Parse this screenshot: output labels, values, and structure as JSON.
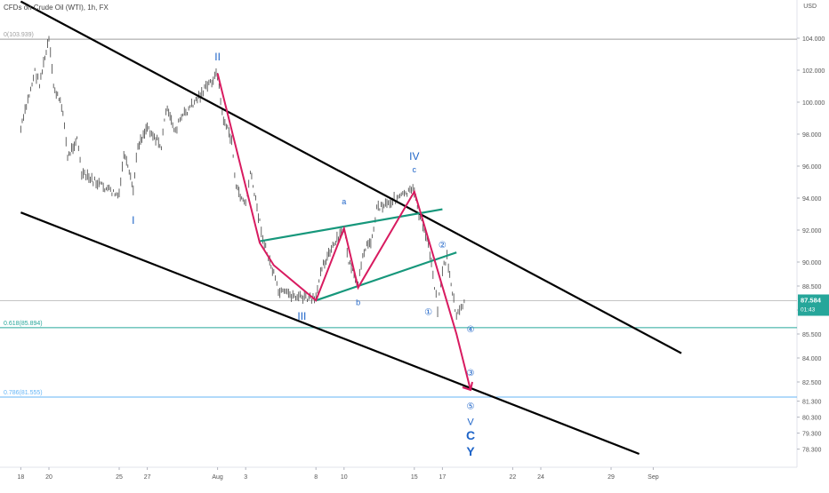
{
  "header": {
    "symbol_title": "CFDs on Crude Oil (WTI), 1h, FX",
    "currency": "USD"
  },
  "chart_data": {
    "type": "candlestick",
    "ylim": [
      77.8,
      106.5
    ],
    "y_ticks": [
      104.0,
      102.0,
      100.0,
      98.0,
      96.0,
      94.0,
      92.0,
      90.0,
      88.5,
      87.0,
      85.5,
      84.0,
      82.5,
      81.3,
      80.3,
      79.3,
      78.3
    ],
    "y_tick_labels": [
      "104.000",
      "102.000",
      "100.000",
      "98.000",
      "96.000",
      "94.000",
      "92.000",
      "90.000",
      "88.500",
      "87.000",
      "85.500",
      "84.000",
      "82.500",
      "81.300",
      "80.300",
      "79.300",
      "78.300"
    ],
    "x_ticks": [
      "18",
      "20",
      "25",
      "27",
      "Aug",
      "3",
      "8",
      "10",
      "15",
      "17",
      "22",
      "24",
      "29",
      "Sep"
    ],
    "last_price": {
      "value": 87.584,
      "label": "87.584",
      "countdown": "01:43",
      "color": "#26a69a"
    },
    "price_path": [
      {
        "t": "Jul 18",
        "v": 98.3
      },
      {
        "t": "Jul 19",
        "v": 101.9
      },
      {
        "t": "Jul 19 b",
        "v": 101.2
      },
      {
        "t": "Jul 20",
        "v": 103.9
      },
      {
        "t": "Jul 20 b",
        "v": 101.0
      },
      {
        "t": "Jul 21",
        "v": 99.5
      },
      {
        "t": "Jul 21 b",
        "v": 96.5
      },
      {
        "t": "Jul 22",
        "v": 97.8
      },
      {
        "t": "Jul 22 b",
        "v": 95.5
      },
      {
        "t": "Jul 25",
        "v": 94.1
      },
      {
        "t": "Jul 25 b",
        "v": 96.8
      },
      {
        "t": "Jul 26",
        "v": 94.5
      },
      {
        "t": "Jul 26 b",
        "v": 97.3
      },
      {
        "t": "Jul 27",
        "v": 98.5
      },
      {
        "t": "Jul 28",
        "v": 97.2
      },
      {
        "t": "Jul 28 b",
        "v": 99.6
      },
      {
        "t": "Jul 29",
        "v": 98.2
      },
      {
        "t": "Jul 29 b",
        "v": 98.9
      },
      {
        "t": "Aug 1",
        "v": 101.8
      },
      {
        "t": "Aug 1 b",
        "v": 99.2
      },
      {
        "t": "Aug 2",
        "v": 97.6
      },
      {
        "t": "Aug 2 b",
        "v": 94.6
      },
      {
        "t": "Aug 3",
        "v": 93.6
      },
      {
        "t": "Aug 3 b",
        "v": 95.6
      },
      {
        "t": "Aug 4",
        "v": 92.5
      },
      {
        "t": "Aug 4 b",
        "v": 91.1
      },
      {
        "t": "Aug 5",
        "v": 89.2
      },
      {
        "t": "Aug 5 b",
        "v": 88.1
      },
      {
        "t": "Aug 8",
        "v": 87.6
      },
      {
        "t": "Aug 8 b",
        "v": 89.6
      },
      {
        "t": "Aug 9",
        "v": 90.6
      },
      {
        "t": "Aug 10",
        "v": 92.1
      },
      {
        "t": "Aug 10 b",
        "v": 90.0
      },
      {
        "t": "Aug 11",
        "v": 88.4
      },
      {
        "t": "Aug 11 b",
        "v": 90.6
      },
      {
        "t": "Aug 12",
        "v": 91.5
      },
      {
        "t": "Aug 12 b",
        "v": 93.4
      },
      {
        "t": "Aug 15",
        "v": 94.5
      },
      {
        "t": "Aug 15 b",
        "v": 93.0
      },
      {
        "t": "Aug 16",
        "v": 91.2
      },
      {
        "t": "Aug 16 b",
        "v": 89.3
      },
      {
        "t": "Aug 16 c",
        "v": 87.1
      },
      {
        "t": "Aug 17",
        "v": 89.5
      },
      {
        "t": "Aug 17 b",
        "v": 90.3
      },
      {
        "t": "Aug 18",
        "v": 86.5
      },
      {
        "t": "Aug 18 b",
        "v": 87.2
      },
      {
        "t": "Aug 18 c",
        "v": 87.58
      }
    ],
    "fib_levels": [
      {
        "value": 103.939,
        "label": "0(103.939)",
        "color": "#9e9e9e"
      },
      {
        "value": 85.894,
        "label": "0.618(85.894)",
        "color": "#26a69a"
      },
      {
        "value": 81.555,
        "label": "0.786(81.555)",
        "color": "#64b5f6"
      }
    ],
    "current_price_line": 87.584,
    "channel_lines": [
      {
        "name": "channel-upper",
        "from": {
          "t": "Jul 18",
          "v": 106.3
        },
        "to": {
          "t": "Sep 3",
          "v": 84.3
        },
        "color": "#000000"
      },
      {
        "name": "channel-lower",
        "from": {
          "t": "Jul 18",
          "v": 93.1
        },
        "to": {
          "t": "Aug 31",
          "v": 78.0
        },
        "color": "#000000"
      }
    ],
    "triangle_lines": [
      {
        "name": "triangle-upper",
        "from": {
          "t": "Aug 4",
          "v": 91.3
        },
        "to": {
          "t": "Aug 17",
          "v": 93.3
        },
        "color": "#16977b"
      },
      {
        "name": "triangle-lower",
        "from": {
          "t": "Aug 8",
          "v": 87.6
        },
        "to": {
          "t": "Aug 18",
          "v": 90.6
        },
        "color": "#16977b"
      }
    ],
    "wave_path": {
      "color": "#d81b60",
      "points": [
        {
          "t": "Aug 1",
          "v": 101.8
        },
        {
          "t": "Aug 4",
          "v": 91.2
        },
        {
          "t": "Aug 5",
          "v": 89.8
        },
        {
          "t": "Aug 8",
          "v": 87.6
        },
        {
          "t": "Aug 10",
          "v": 92.1
        },
        {
          "t": "Aug 11",
          "v": 88.4
        },
        {
          "t": "Aug 15",
          "v": 94.4
        },
        {
          "t": "Aug 18",
          "v": 85.5
        },
        {
          "t": "Aug 19",
          "v": 82.0
        }
      ]
    },
    "wave_labels": [
      {
        "text": "II",
        "t": "Aug 1",
        "v": 102.6,
        "color": "#1e64c8",
        "size": 12
      },
      {
        "text": "I",
        "t": "Jul 26",
        "v": 92.4,
        "color": "#1e64c8",
        "size": 12
      },
      {
        "text": "III",
        "t": "Aug 7",
        "v": 86.4,
        "color": "#1e64c8",
        "size": 12
      },
      {
        "text": "IV",
        "t": "Aug 15",
        "v": 96.4,
        "color": "#1e64c8",
        "size": 12
      },
      {
        "text": "a",
        "t": "Aug 10",
        "v": 93.6,
        "color": "#1e64c8",
        "size": 9
      },
      {
        "text": "b",
        "t": "Aug 11",
        "v": 87.3,
        "color": "#1e64c8",
        "size": 9
      },
      {
        "text": "c",
        "t": "Aug 15",
        "v": 95.6,
        "color": "#1e64c8",
        "size": 9
      },
      {
        "text": "①",
        "t": "Aug 16",
        "v": 86.7,
        "color": "#1e64c8",
        "size": 10
      },
      {
        "text": "②",
        "t": "Aug 17",
        "v": 90.9,
        "color": "#1e64c8",
        "size": 10
      },
      {
        "text": "③",
        "t": "Aug 19",
        "v": 82.9,
        "color": "#1e64c8",
        "size": 10
      },
      {
        "text": "④",
        "t": "Aug 19",
        "v": 85.6,
        "color": "#1e64c8",
        "size": 10
      },
      {
        "text": "⑤",
        "t": "Aug 19",
        "v": 80.8,
        "color": "#1e64c8",
        "size": 10
      },
      {
        "text": "V",
        "t": "Aug 19",
        "v": 79.8,
        "color": "#1e64c8",
        "size": 11
      },
      {
        "text": "C",
        "t": "Aug 19",
        "v": 78.9,
        "color": "#1e64c8",
        "size": 14
      },
      {
        "text": "Y",
        "t": "Aug 19",
        "v": 77.9,
        "color": "#1e64c8",
        "size": 14
      }
    ]
  }
}
